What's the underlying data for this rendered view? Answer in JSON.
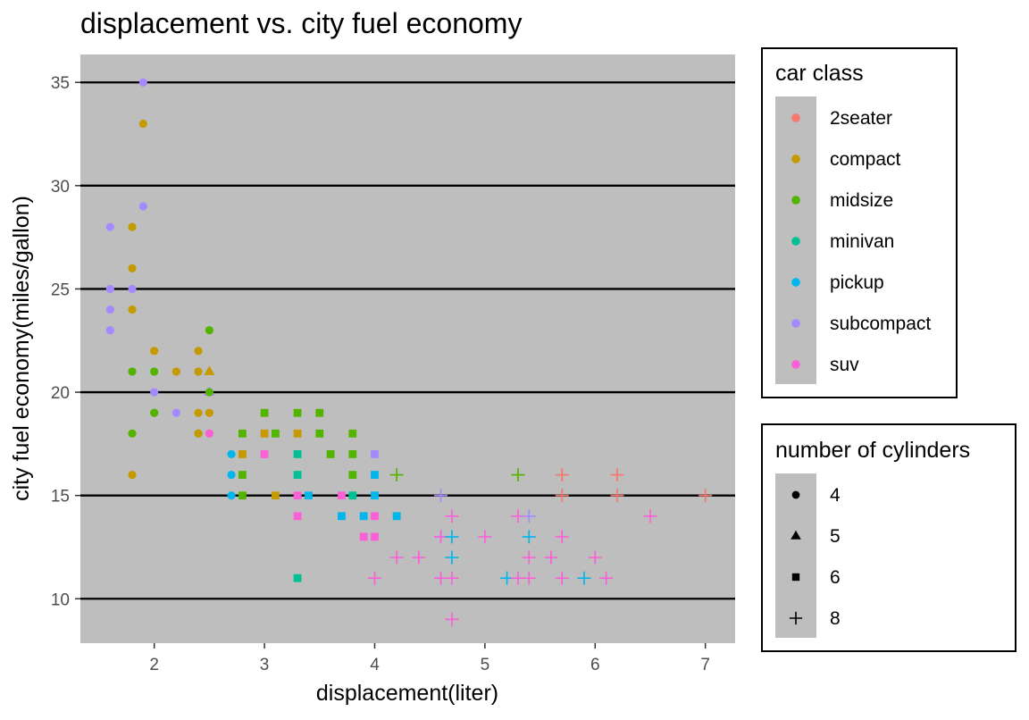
{
  "chart_data": {
    "type": "scatter",
    "title": "displacement vs. city fuel economy",
    "xlabel": "displacement(liter)",
    "ylabel": "city fuel economy(miles/gallon)",
    "xlim": [
      1.33,
      7.27
    ],
    "ylim": [
      7.85,
      36.35
    ],
    "x_ticks": [
      2,
      3,
      4,
      5,
      6,
      7
    ],
    "y_ticks": [
      10,
      15,
      20,
      25,
      30,
      35
    ],
    "panel_background": "#bebebe",
    "grid": "horizontal major lines only",
    "legends": [
      {
        "title": "car class",
        "kind": "color",
        "entries": [
          {
            "label": "2seater",
            "color": "#F8766D"
          },
          {
            "label": "compact",
            "color": "#C49A00"
          },
          {
            "label": "midsize",
            "color": "#53B400"
          },
          {
            "label": "minivan",
            "color": "#00C094"
          },
          {
            "label": "pickup",
            "color": "#00B6EB"
          },
          {
            "label": "subcompact",
            "color": "#A58AFF"
          },
          {
            "label": "suv",
            "color": "#FB61D7"
          }
        ]
      },
      {
        "title": "number of cylinders",
        "kind": "shape",
        "entries": [
          {
            "label": "4",
            "shape": "circle"
          },
          {
            "label": "5",
            "shape": "triangle"
          },
          {
            "label": "6",
            "shape": "square"
          },
          {
            "label": "8",
            "shape": "plus"
          }
        ]
      }
    ],
    "points": [
      [
        1.6,
        28,
        "subcompact",
        "4"
      ],
      [
        1.6,
        25,
        "subcompact",
        "4"
      ],
      [
        1.6,
        24,
        "subcompact",
        "4"
      ],
      [
        1.6,
        23,
        "subcompact",
        "4"
      ],
      [
        1.8,
        28,
        "compact",
        "4"
      ],
      [
        1.8,
        26,
        "compact",
        "4"
      ],
      [
        1.8,
        25,
        "subcompact",
        "4"
      ],
      [
        1.8,
        24,
        "compact",
        "4"
      ],
      [
        1.8,
        21,
        "midsize",
        "4"
      ],
      [
        1.8,
        18,
        "midsize",
        "4"
      ],
      [
        1.8,
        16,
        "compact",
        "4"
      ],
      [
        1.9,
        35,
        "subcompact",
        "4"
      ],
      [
        1.9,
        33,
        "compact",
        "4"
      ],
      [
        1.9,
        29,
        "subcompact",
        "4"
      ],
      [
        2.0,
        22,
        "compact",
        "4"
      ],
      [
        2.0,
        21,
        "midsize",
        "4"
      ],
      [
        2.0,
        20,
        "subcompact",
        "4"
      ],
      [
        2.0,
        19,
        "compact",
        "4"
      ],
      [
        2.0,
        19,
        "midsize",
        "4"
      ],
      [
        2.2,
        21,
        "compact",
        "4"
      ],
      [
        2.2,
        19,
        "subcompact",
        "4"
      ],
      [
        2.4,
        22,
        "compact",
        "4"
      ],
      [
        2.4,
        21,
        "compact",
        "4"
      ],
      [
        2.4,
        19,
        "compact",
        "4"
      ],
      [
        2.4,
        18,
        "midsize",
        "4"
      ],
      [
        2.4,
        18,
        "compact",
        "4"
      ],
      [
        2.5,
        23,
        "midsize",
        "4"
      ],
      [
        2.5,
        21,
        "compact",
        "5"
      ],
      [
        2.5,
        20,
        "subcompact",
        "5"
      ],
      [
        2.5,
        20,
        "midsize",
        "4"
      ],
      [
        2.5,
        19,
        "compact",
        "4"
      ],
      [
        2.5,
        18,
        "compact",
        "4"
      ],
      [
        2.5,
        18,
        "suv",
        "4"
      ],
      [
        2.7,
        17,
        "pickup",
        "4"
      ],
      [
        2.7,
        16,
        "pickup",
        "4"
      ],
      [
        2.7,
        15,
        "pickup",
        "4"
      ],
      [
        2.8,
        18,
        "midsize",
        "6"
      ],
      [
        2.8,
        17,
        "compact",
        "6"
      ],
      [
        2.8,
        16,
        "midsize",
        "6"
      ],
      [
        2.8,
        15,
        "midsize",
        "6"
      ],
      [
        3.0,
        19,
        "midsize",
        "6"
      ],
      [
        3.0,
        18,
        "compact",
        "6"
      ],
      [
        3.0,
        17,
        "suv",
        "6"
      ],
      [
        3.1,
        18,
        "midsize",
        "6"
      ],
      [
        3.1,
        15,
        "compact",
        "6"
      ],
      [
        3.3,
        19,
        "midsize",
        "6"
      ],
      [
        3.3,
        18,
        "compact",
        "6"
      ],
      [
        3.3,
        17,
        "minivan",
        "6"
      ],
      [
        3.3,
        16,
        "minivan",
        "6"
      ],
      [
        3.3,
        15,
        "suv",
        "6"
      ],
      [
        3.3,
        14,
        "suv",
        "6"
      ],
      [
        3.3,
        11,
        "minivan",
        "6"
      ],
      [
        3.4,
        15,
        "pickup",
        "6"
      ],
      [
        3.5,
        19,
        "midsize",
        "6"
      ],
      [
        3.5,
        18,
        "midsize",
        "6"
      ],
      [
        3.6,
        17,
        "midsize",
        "6"
      ],
      [
        3.7,
        15,
        "suv",
        "6"
      ],
      [
        3.7,
        14,
        "pickup",
        "6"
      ],
      [
        3.8,
        18,
        "midsize",
        "6"
      ],
      [
        3.8,
        17,
        "midsize",
        "6"
      ],
      [
        3.8,
        16,
        "midsize",
        "6"
      ],
      [
        3.8,
        15,
        "minivan",
        "6"
      ],
      [
        3.9,
        14,
        "pickup",
        "6"
      ],
      [
        3.9,
        13,
        "suv",
        "6"
      ],
      [
        4.0,
        17,
        "subcompact",
        "6"
      ],
      [
        4.0,
        16,
        "pickup",
        "6"
      ],
      [
        4.0,
        15,
        "pickup",
        "6"
      ],
      [
        4.0,
        14,
        "suv",
        "6"
      ],
      [
        4.0,
        13,
        "suv",
        "6"
      ],
      [
        4.0,
        11,
        "suv",
        "8"
      ],
      [
        4.2,
        16,
        "midsize",
        "8"
      ],
      [
        4.2,
        14,
        "pickup",
        "6"
      ],
      [
        4.2,
        12,
        "suv",
        "8"
      ],
      [
        4.4,
        12,
        "suv",
        "8"
      ],
      [
        4.6,
        15,
        "subcompact",
        "8"
      ],
      [
        4.6,
        13,
        "subcompact",
        "8"
      ],
      [
        4.6,
        13,
        "suv",
        "8"
      ],
      [
        4.6,
        11,
        "suv",
        "8"
      ],
      [
        4.7,
        14,
        "suv",
        "8"
      ],
      [
        4.7,
        13,
        "pickup",
        "8"
      ],
      [
        4.7,
        12,
        "pickup",
        "8"
      ],
      [
        4.7,
        11,
        "suv",
        "8"
      ],
      [
        4.7,
        9,
        "suv",
        "8"
      ],
      [
        5.0,
        13,
        "suv",
        "8"
      ],
      [
        5.2,
        11,
        "pickup",
        "8"
      ],
      [
        5.3,
        16,
        "midsize",
        "8"
      ],
      [
        5.3,
        14,
        "suv",
        "8"
      ],
      [
        5.3,
        11,
        "suv",
        "8"
      ],
      [
        5.4,
        14,
        "subcompact",
        "8"
      ],
      [
        5.4,
        13,
        "pickup",
        "8"
      ],
      [
        5.4,
        12,
        "suv",
        "8"
      ],
      [
        5.4,
        11,
        "suv",
        "8"
      ],
      [
        5.6,
        12,
        "suv",
        "8"
      ],
      [
        5.7,
        16,
        "2seater",
        "8"
      ],
      [
        5.7,
        15,
        "2seater",
        "8"
      ],
      [
        5.7,
        13,
        "suv",
        "8"
      ],
      [
        5.7,
        11,
        "suv",
        "8"
      ],
      [
        5.9,
        11,
        "pickup",
        "8"
      ],
      [
        6.0,
        12,
        "suv",
        "8"
      ],
      [
        6.1,
        11,
        "suv",
        "8"
      ],
      [
        6.2,
        16,
        "2seater",
        "8"
      ],
      [
        6.2,
        15,
        "2seater",
        "8"
      ],
      [
        6.5,
        14,
        "suv",
        "8"
      ],
      [
        7.0,
        15,
        "2seater",
        "8"
      ]
    ]
  }
}
